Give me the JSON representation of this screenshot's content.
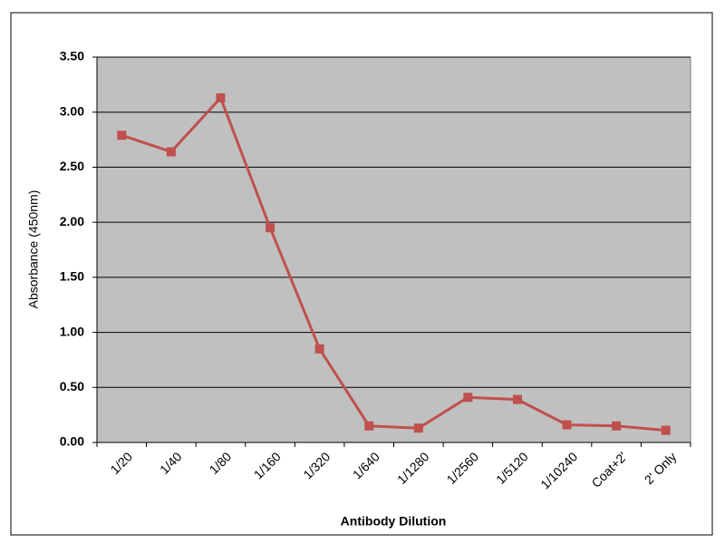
{
  "chart_data": {
    "type": "line",
    "x_label": "Antibody Dilution",
    "y_label": "Absorbance (450nm)",
    "categories": [
      "1/20",
      "1/40",
      "1/80",
      "1/160",
      "1/320",
      "1/640",
      "1/1280",
      "1/2560",
      "1/5120",
      "1/10240",
      "Coat+2'",
      "2' Only"
    ],
    "series": [
      {
        "name": "Absorbance",
        "color": "#c0504d",
        "values": [
          2.79,
          2.64,
          3.13,
          1.95,
          0.85,
          0.15,
          0.13,
          0.41,
          0.39,
          0.16,
          0.15,
          0.11
        ]
      }
    ],
    "ylim": [
      0,
      3.5
    ],
    "yticks": [
      {
        "value": 0,
        "label": "0.00"
      },
      {
        "value": 0.5,
        "label": "0.50"
      },
      {
        "value": 1,
        "label": "1.00"
      },
      {
        "value": 1.5,
        "label": "1.50"
      },
      {
        "value": 2,
        "label": "2.00"
      },
      {
        "value": 2.5,
        "label": "2.50"
      },
      {
        "value": 3,
        "label": "3.00"
      },
      {
        "value": 3.5,
        "label": "3.50"
      }
    ],
    "grid": true,
    "plot_background": "#c0c0c0"
  }
}
